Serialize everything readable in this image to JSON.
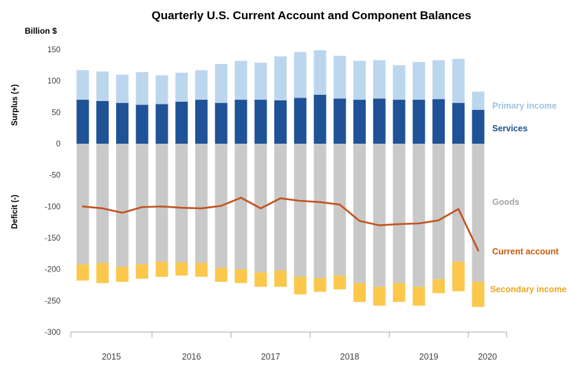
{
  "chart_data": {
    "type": "bar",
    "title": "Quarterly U.S. Current Account and Component Balances",
    "y_unit": "Billion $",
    "surplus_label": "Surplus (+)",
    "deficit_label": "Deficit (-)",
    "ylim": [
      -300,
      150
    ],
    "y_ticks": [
      150,
      100,
      50,
      0,
      -50,
      -100,
      -150,
      -200,
      -250,
      -300
    ],
    "grid": false,
    "legend_position": "right",
    "years": [
      "2015",
      "2016",
      "2017",
      "2018",
      "2019",
      "2020"
    ],
    "quarters_per_year": [
      4,
      4,
      4,
      4,
      4,
      1
    ],
    "categories": [
      "2015 Q1",
      "2015 Q2",
      "2015 Q3",
      "2015 Q4",
      "2016 Q1",
      "2016 Q2",
      "2016 Q3",
      "2016 Q4",
      "2017 Q1",
      "2017 Q2",
      "2017 Q3",
      "2017 Q4",
      "2018 Q1",
      "2018 Q2",
      "2018 Q3",
      "2018 Q4",
      "2019 Q1",
      "2019 Q2",
      "2019 Q3",
      "2019 Q4",
      "2020 Q1"
    ],
    "series": [
      {
        "name": "Services",
        "type": "bar",
        "stack": "positive",
        "color": "#1f5296",
        "values": [
          70,
          68,
          65,
          62,
          63,
          67,
          70,
          65,
          70,
          70,
          69,
          73,
          78,
          72,
          70,
          72,
          70,
          70,
          71,
          65,
          54
        ]
      },
      {
        "name": "Primary income",
        "type": "bar",
        "stack": "positive",
        "color": "#bcd6ee",
        "values": [
          47,
          47,
          45,
          52,
          46,
          46,
          47,
          62,
          62,
          59,
          70,
          73,
          71,
          68,
          62,
          61,
          55,
          60,
          62,
          70,
          29
        ]
      },
      {
        "name": "Goods",
        "type": "bar",
        "stack": "negative",
        "color": "#c9c9c9",
        "values": [
          -192,
          -190,
          -196,
          -192,
          -188,
          -189,
          -190,
          -198,
          -200,
          -205,
          -202,
          -212,
          -214,
          -210,
          -222,
          -228,
          -222,
          -228,
          -216,
          -188,
          -220
        ]
      },
      {
        "name": "Secondary income",
        "type": "bar",
        "stack": "negative",
        "color": "#fbc84c",
        "values": [
          -26,
          -32,
          -24,
          -23,
          -24,
          -21,
          -22,
          -22,
          -22,
          -23,
          -26,
          -28,
          -22,
          -22,
          -30,
          -30,
          -30,
          -30,
          -22,
          -47,
          -40
        ]
      },
      {
        "name": "Current account",
        "type": "line",
        "color": "#c0531f",
        "values": [
          -100,
          -103,
          -110,
          -101,
          -100,
          -102,
          -103,
          -99,
          -86,
          -103,
          -87,
          -91,
          -93,
          -97,
          -123,
          -130,
          -128,
          -127,
          -122,
          -104,
          -170
        ]
      }
    ],
    "legend": [
      {
        "label": "Primary income",
        "color": "#9cc3e5"
      },
      {
        "label": "Services",
        "color": "#1f5296"
      },
      {
        "label": "Goods",
        "color": "#a6a6a6"
      },
      {
        "label": "Current account",
        "color": "#c55a11"
      },
      {
        "label": "Secondary income",
        "color": "#eda61f"
      }
    ]
  }
}
